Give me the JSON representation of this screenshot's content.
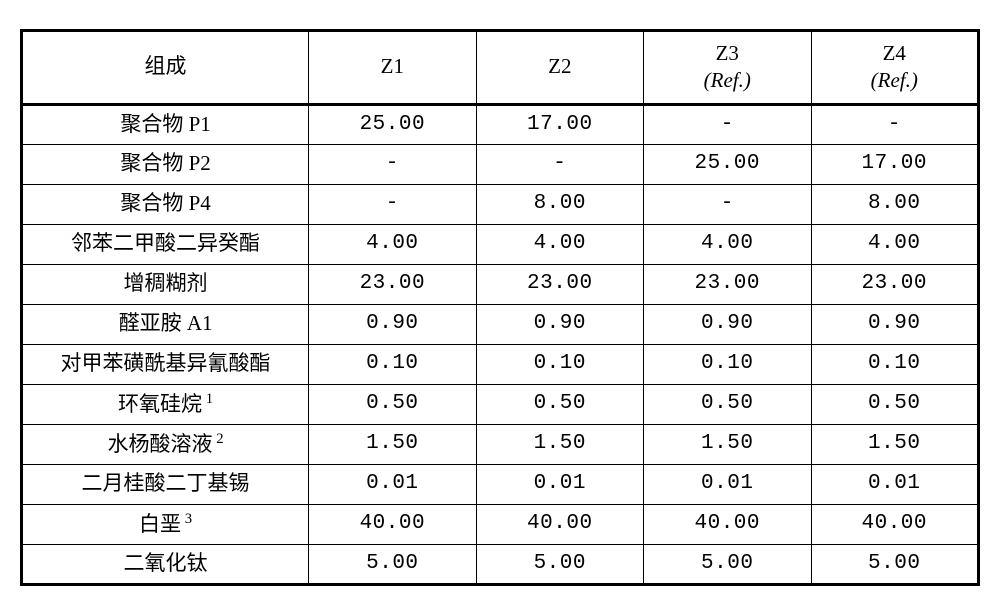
{
  "table": {
    "type": "table",
    "border_color": "#000000",
    "background_color": "#ffffff",
    "outer_border_width": 3,
    "inner_border_width": 1,
    "header_fontsize": 21,
    "cell_fontsize": 21,
    "columns": [
      {
        "key": "compo",
        "label": "组成",
        "sublabel": ""
      },
      {
        "key": "z1",
        "label": "Z1",
        "sublabel": ""
      },
      {
        "key": "z2",
        "label": "Z2",
        "sublabel": ""
      },
      {
        "key": "z3",
        "label": "Z3",
        "sublabel": "(Ref.)"
      },
      {
        "key": "z4",
        "label": "Z4",
        "sublabel": "(Ref.)"
      }
    ],
    "rows": [
      {
        "label": "聚合物 P1",
        "sup": "",
        "z1": "25.00",
        "z2": "17.00",
        "z3": "-",
        "z4": "-"
      },
      {
        "label": "聚合物 P2",
        "sup": "",
        "z1": "-",
        "z2": "-",
        "z3": "25.00",
        "z4": "17.00"
      },
      {
        "label": "聚合物 P4",
        "sup": "",
        "z1": "-",
        "z2": "8.00",
        "z3": "-",
        "z4": "8.00"
      },
      {
        "label": "邻苯二甲酸二异癸酯",
        "sup": "",
        "z1": "4.00",
        "z2": "4.00",
        "z3": "4.00",
        "z4": "4.00"
      },
      {
        "label": "增稠糊剂",
        "sup": "",
        "z1": "23.00",
        "z2": "23.00",
        "z3": "23.00",
        "z4": "23.00"
      },
      {
        "label": "醛亚胺 A1",
        "sup": "",
        "z1": "0.90",
        "z2": "0.90",
        "z3": "0.90",
        "z4": "0.90"
      },
      {
        "label": "对甲苯磺酰基异氰酸酯",
        "sup": "",
        "z1": "0.10",
        "z2": "0.10",
        "z3": "0.10",
        "z4": "0.10"
      },
      {
        "label": "环氧硅烷",
        "sup": "1",
        "z1": "0.50",
        "z2": "0.50",
        "z3": "0.50",
        "z4": "0.50"
      },
      {
        "label": "水杨酸溶液",
        "sup": "2",
        "z1": "1.50",
        "z2": "1.50",
        "z3": "1.50",
        "z4": "1.50"
      },
      {
        "label": "二月桂酸二丁基锡",
        "sup": "",
        "z1": "0.01",
        "z2": "0.01",
        "z3": "0.01",
        "z4": "0.01"
      },
      {
        "label": "白垩",
        "sup": "3",
        "z1": "40.00",
        "z2": "40.00",
        "z3": "40.00",
        "z4": "40.00"
      },
      {
        "label": "二氧化钛",
        "sup": "",
        "z1": "5.00",
        "z2": "5.00",
        "z3": "5.00",
        "z4": "5.00"
      }
    ]
  }
}
